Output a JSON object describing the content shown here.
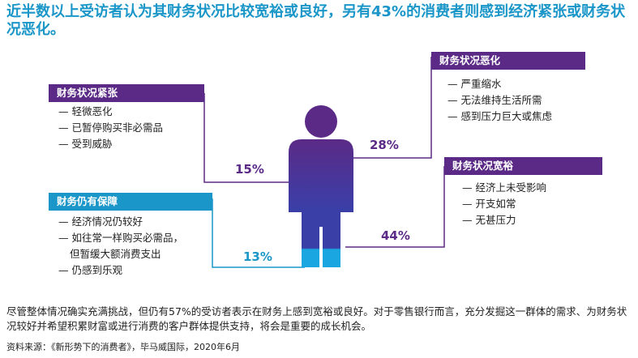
{
  "title": "近半数以上受访者认为其财务状况比较宽裕或良好，另有43%的消费者则感到经济紧张或财务状况恶化。",
  "segments": {
    "tight": {
      "label": "财务状况紧张",
      "items": [
        "— 轻微恶化",
        "— 已暂停购买非必需品",
        "— 受到威胁"
      ],
      "percent": "15%",
      "color": "#5b2a86"
    },
    "worsening": {
      "label": "财务状况恶化",
      "items": [
        "— 严重缩水",
        "— 无法维持生活所需",
        "— 感到压力巨大或焦虑"
      ],
      "percent": "28%",
      "color": "#5b2a86"
    },
    "comfortable": {
      "label": "财务状况宽裕",
      "items": [
        "— 经济上未受影响",
        "— 开支如常",
        "— 无甚压力"
      ],
      "percent": "44%",
      "color": "#5b2a86"
    },
    "secure": {
      "label": "财务仍有保障",
      "items": [
        "— 经济情况仍较好",
        "— 如往常一样购买必需品，",
        "但暂缓大额消费支出",
        "— 仍感到乐观"
      ],
      "percent": "13%",
      "color": "#1a96c8"
    }
  },
  "summary": "尽管整体情况确实充满挑战，但仍有57%的受访者表示在财务上感到宽裕或良好。对于零售银行而言，充分发掘这一群体的需求、为财务状况较好并希望积累财富或进行消费的客户群体提供支持，将会是重要的成长机会。",
  "source": "资料来源：《新形势下的消费者》，毕马威国际，2020年6月"
}
